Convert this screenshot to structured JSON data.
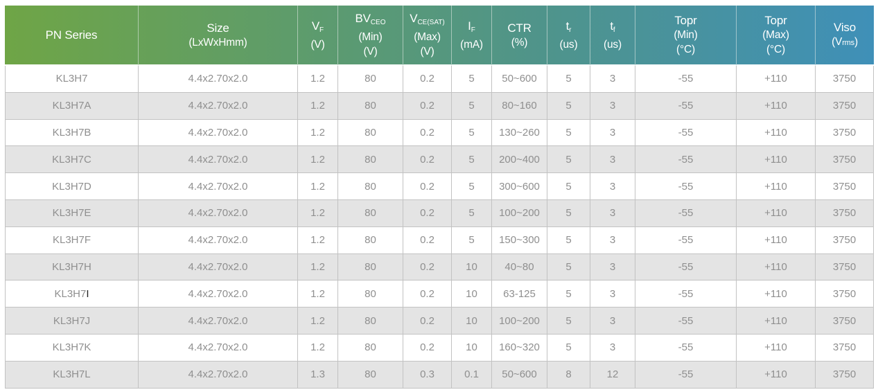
{
  "colors": {
    "header_gradient_from": "#6fa546",
    "header_gradient_mid": "#4f948b",
    "header_gradient_to": "#3f90b8",
    "alt_row": "#e4e4e4",
    "body_text": "#8f8f8f",
    "border": "#c2c2c2"
  },
  "table": {
    "columns": [
      {
        "label": "PN Series"
      },
      {
        "label": "Size",
        "sub_line": "(LxWxHmm)"
      },
      {
        "main": "V",
        "subscript": "F",
        "units": [
          "(V)"
        ]
      },
      {
        "main": "BV",
        "subscript": "CEO",
        "units": [
          "(Min)",
          "(V)"
        ]
      },
      {
        "main": "V",
        "subscript": "CE(SAT)",
        "units": [
          "(Max)",
          "(V)"
        ]
      },
      {
        "main": "I",
        "subscript": "F",
        "units": [
          "(mA)"
        ]
      },
      {
        "main": "CTR",
        "units": [
          "(%)"
        ]
      },
      {
        "main": "t",
        "subscript": "r",
        "units": [
          "(us)"
        ]
      },
      {
        "main": "t",
        "subscript": "f",
        "units": [
          "(us)"
        ]
      },
      {
        "main": "Topr",
        "units": [
          "(Min)",
          "(°C)"
        ]
      },
      {
        "main": "Topr",
        "units": [
          "(Max)",
          "(°C)"
        ]
      },
      {
        "main": "Viso",
        "unit_pre": "(V",
        "unit_small": "rms",
        "unit_post": ")"
      }
    ],
    "rows": [
      {
        "pn": "KL3H7",
        "cells": [
          "4.4x2.70x2.0",
          "1.2",
          "80",
          "0.2",
          "5",
          "50~600",
          "5",
          "3",
          "-55",
          "+110",
          "3750"
        ]
      },
      {
        "pn": "KL3H7A",
        "cells": [
          "4.4x2.70x2.0",
          "1.2",
          "80",
          "0.2",
          "5",
          "80~160",
          "5",
          "3",
          "-55",
          "+110",
          "3750"
        ]
      },
      {
        "pn": "KL3H7B",
        "cells": [
          "4.4x2.70x2.0",
          "1.2",
          "80",
          "0.2",
          "5",
          "130~260",
          "5",
          "3",
          "-55",
          "+110",
          "3750"
        ]
      },
      {
        "pn": "KL3H7C",
        "cells": [
          "4.4x2.70x2.0",
          "1.2",
          "80",
          "0.2",
          "5",
          "200~400",
          "5",
          "3",
          "-55",
          "+110",
          "3750"
        ]
      },
      {
        "pn": "KL3H7D",
        "cells": [
          "4.4x2.70x2.0",
          "1.2",
          "80",
          "0.2",
          "5",
          "300~600",
          "5",
          "3",
          "-55",
          "+110",
          "3750"
        ]
      },
      {
        "pn": "KL3H7E",
        "cells": [
          "4.4x2.70x2.0",
          "1.2",
          "80",
          "0.2",
          "5",
          "100~200",
          "5",
          "3",
          "-55",
          "+110",
          "3750"
        ]
      },
      {
        "pn": "KL3H7F",
        "cells": [
          "4.4x2.70x2.0",
          "1.2",
          "80",
          "0.2",
          "5",
          "150~300",
          "5",
          "3",
          "-55",
          "+110",
          "3750"
        ]
      },
      {
        "pn": "KL3H7H",
        "cells": [
          "4.4x2.70x2.0",
          "1.2",
          "80",
          "0.2",
          "10",
          "40~80",
          "5",
          "3",
          "-55",
          "+110",
          "3750"
        ]
      },
      {
        "pn": "KL3H7",
        "pn_suffix": "I",
        "cells": [
          "4.4x2.70x2.0",
          "1.2",
          "80",
          "0.2",
          "10",
          "63-125",
          "5",
          "3",
          "-55",
          "+110",
          "3750"
        ]
      },
      {
        "pn": "KL3H7J",
        "cells": [
          "4.4x2.70x2.0",
          "1.2",
          "80",
          "0.2",
          "10",
          "100~200",
          "5",
          "3",
          "-55",
          "+110",
          "3750"
        ]
      },
      {
        "pn": "KL3H7K",
        "cells": [
          "4.4x2.70x2.0",
          "1.2",
          "80",
          "0.2",
          "10",
          "160~320",
          "5",
          "3",
          "-55",
          "+110",
          "3750"
        ]
      },
      {
        "pn": "KL3H7L",
        "cells": [
          "4.4x2.70x2.0",
          "1.3",
          "80",
          "0.3",
          "0.1",
          "50~600",
          "8",
          "12",
          "-55",
          "+110",
          "3750"
        ]
      }
    ]
  }
}
